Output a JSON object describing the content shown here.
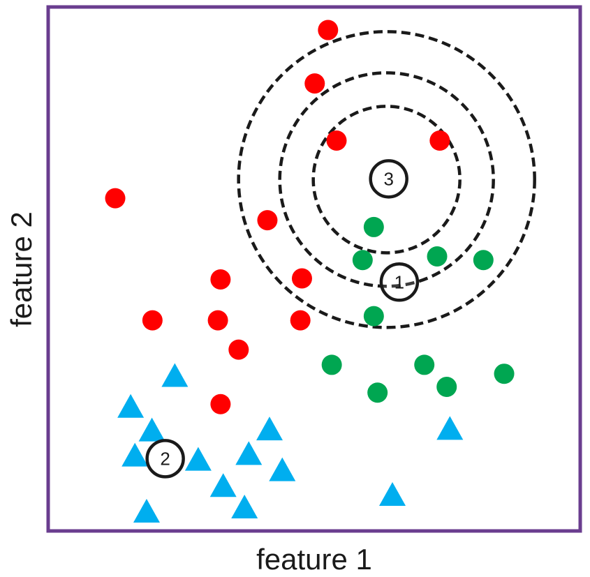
{
  "chart_data": {
    "type": "scatter",
    "title": "",
    "xlabel": "feature 1",
    "ylabel": "feature 2",
    "xlim": [
      0,
      100
    ],
    "ylim": [
      0,
      100
    ],
    "grid": false,
    "axes_visible": false,
    "frame_color": "#6a3d8f",
    "series": [
      {
        "marker": "circle",
        "color": "#ff0000",
        "points": [
          [
            52.6,
            95.6
          ],
          [
            50.1,
            85.4
          ],
          [
            54.2,
            74.5
          ],
          [
            73.6,
            74.5
          ],
          [
            12.6,
            63.5
          ],
          [
            41.2,
            59.3
          ],
          [
            32.4,
            48.0
          ],
          [
            47.7,
            48.2
          ],
          [
            19.6,
            40.2
          ],
          [
            31.9,
            40.2
          ],
          [
            47.4,
            40.2
          ],
          [
            35.8,
            34.6
          ],
          [
            32.4,
            24.2
          ]
        ]
      },
      {
        "marker": "circle",
        "color": "#00a651",
        "points": [
          [
            61.2,
            58.0
          ],
          [
            59.1,
            51.7
          ],
          [
            73.1,
            52.4
          ],
          [
            81.8,
            51.7
          ],
          [
            61.2,
            41.0
          ],
          [
            53.3,
            31.7
          ],
          [
            61.9,
            26.4
          ],
          [
            70.7,
            31.7
          ],
          [
            74.9,
            27.5
          ],
          [
            85.7,
            30.0
          ]
        ]
      },
      {
        "marker": "triangle",
        "color": "#00aeef",
        "points": [
          [
            23.8,
            29.4
          ],
          [
            15.5,
            23.5
          ],
          [
            19.5,
            19.0
          ],
          [
            16.3,
            14.2
          ],
          [
            28.2,
            13.4
          ],
          [
            41.6,
            19.2
          ],
          [
            37.7,
            14.5
          ],
          [
            44.0,
            11.4
          ],
          [
            32.9,
            8.4
          ],
          [
            36.9,
            4.3
          ],
          [
            18.5,
            3.5
          ],
          [
            75.5,
            19.3
          ],
          [
            64.7,
            6.7
          ]
        ]
      }
    ],
    "test_points": [
      {
        "label": "1",
        "x": 66.0,
        "y": 47.5
      },
      {
        "label": "2",
        "x": 22.0,
        "y": 13.8
      },
      {
        "label": "3",
        "x": 64.0,
        "y": 67.2
      }
    ],
    "neighborhood": {
      "center_label": "3",
      "ring_count": 3,
      "line_style": "dashed",
      "color": "#1a1a1a"
    }
  }
}
